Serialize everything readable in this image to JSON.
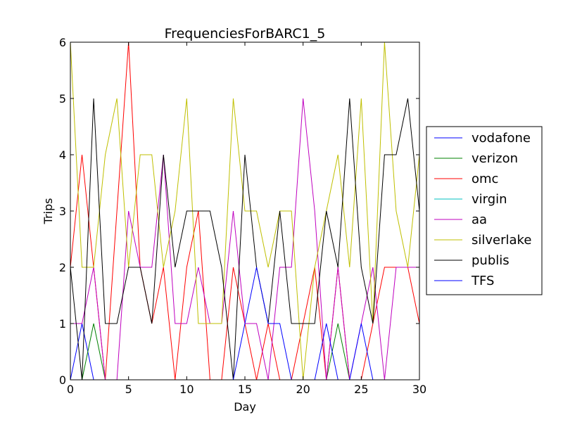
{
  "chart_data": {
    "type": "line",
    "title": "FrequenciesForBARC1_5",
    "xlabel": "Day",
    "ylabel": "Trips",
    "xlim": [
      0,
      30
    ],
    "ylim": [
      0,
      6
    ],
    "xticks": [
      0,
      5,
      10,
      15,
      20,
      25,
      30
    ],
    "yticks": [
      0,
      1,
      2,
      3,
      4,
      5,
      6
    ],
    "grid": false,
    "legend_position": "right",
    "x": [
      0,
      1,
      2,
      3,
      4,
      5,
      6,
      7,
      8,
      9,
      10,
      11,
      12,
      13,
      14,
      15,
      16,
      17,
      18,
      19,
      20,
      21,
      22,
      23,
      24,
      25,
      26,
      27,
      28,
      29,
      30
    ],
    "series": [
      {
        "name": "vodafone",
        "color": "#0000ff",
        "values": [
          0,
          1,
          0,
          0,
          0,
          0,
          0,
          0,
          0,
          0,
          0,
          0,
          0,
          0,
          0,
          0,
          0,
          0,
          0,
          0,
          0,
          0,
          0,
          0,
          0,
          0,
          0,
          0,
          0,
          0,
          0
        ]
      },
      {
        "name": "verizon",
        "color": "#008000",
        "values": [
          0,
          0,
          1,
          0,
          0,
          0,
          0,
          0,
          0,
          0,
          0,
          0,
          0,
          0,
          0,
          0,
          0,
          0,
          0,
          0,
          0,
          0,
          0,
          1,
          0,
          0,
          0,
          0,
          0,
          0,
          0
        ]
      },
      {
        "name": "omc",
        "color": "#ff0000",
        "values": [
          2,
          4,
          2,
          0,
          3,
          6,
          2,
          1,
          2,
          0,
          2,
          3,
          0,
          0,
          2,
          1,
          0,
          1,
          0,
          0,
          1,
          2,
          0,
          2,
          0,
          0,
          1,
          2,
          2,
          2,
          1
        ]
      },
      {
        "name": "virgin",
        "color": "#00bfbf",
        "values": [
          0,
          0,
          0,
          0,
          0,
          0,
          0,
          0,
          0,
          0,
          0,
          0,
          0,
          0,
          0,
          0,
          0,
          0,
          0,
          0,
          0,
          0,
          0,
          0,
          0,
          0,
          0,
          0,
          0,
          0,
          0
        ]
      },
      {
        "name": "aa",
        "color": "#bf00bf",
        "values": [
          1,
          1,
          2,
          0,
          0,
          3,
          2,
          2,
          4,
          1,
          1,
          2,
          1,
          1,
          3,
          1,
          1,
          0,
          2,
          2,
          5,
          3,
          0,
          2,
          0,
          1,
          2,
          0,
          2,
          2,
          2
        ]
      },
      {
        "name": "silverlake",
        "color": "#bfbf00",
        "values": [
          6,
          2,
          2,
          4,
          5,
          2,
          4,
          4,
          2,
          3,
          5,
          1,
          1,
          1,
          5,
          3,
          3,
          2,
          3,
          3,
          0,
          2,
          3,
          4,
          2,
          5,
          1,
          6,
          3,
          2,
          4
        ]
      },
      {
        "name": "publis",
        "color": "#000000",
        "values": [
          2,
          0,
          5,
          1,
          1,
          2,
          2,
          1,
          4,
          2,
          3,
          3,
          3,
          2,
          0,
          4,
          2,
          1,
          3,
          1,
          1,
          1,
          3,
          2,
          5,
          2,
          1,
          4,
          4,
          5,
          3
        ]
      },
      {
        "name": "TFS",
        "color": "#0000ff",
        "values": [
          0,
          0,
          0,
          0,
          0,
          0,
          0,
          0,
          0,
          0,
          0,
          0,
          0,
          0,
          0,
          1,
          2,
          1,
          1,
          0,
          0,
          0,
          1,
          0,
          0,
          1,
          0,
          0,
          0,
          0,
          0
        ]
      }
    ]
  }
}
